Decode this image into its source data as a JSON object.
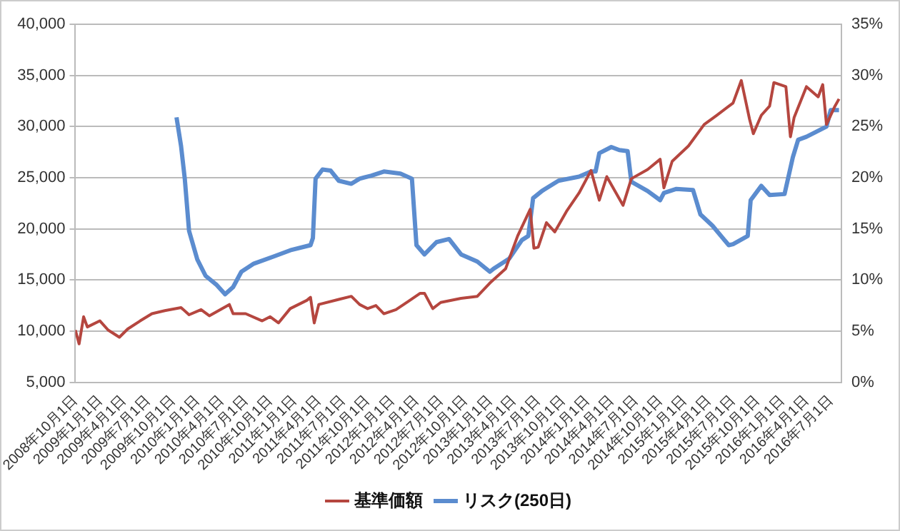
{
  "chart_data": {
    "type": "line",
    "legend": "bottom",
    "grid": "y",
    "marker": "none",
    "line_style": "solid",
    "xlim": [
      "2008-10-01",
      "2016-08-10"
    ],
    "xticks": [
      {
        "value": "2008-10-01",
        "label": "2008年10月1日"
      },
      {
        "value": "2009-01-01",
        "label": "2009年1月1日"
      },
      {
        "value": "2009-04-01",
        "label": "2009年4月1日"
      },
      {
        "value": "2009-07-01",
        "label": "2009年7月1日"
      },
      {
        "value": "2009-10-01",
        "label": "2009年10月1日"
      },
      {
        "value": "2010-01-01",
        "label": "2010年1月1日"
      },
      {
        "value": "2010-04-01",
        "label": "2010年4月1日"
      },
      {
        "value": "2010-07-01",
        "label": "2010年7月1日"
      },
      {
        "value": "2010-10-01",
        "label": "2010年10月1日"
      },
      {
        "value": "2011-01-01",
        "label": "2011年1月1日"
      },
      {
        "value": "2011-04-01",
        "label": "2011年4月1日"
      },
      {
        "value": "2011-07-01",
        "label": "2011年7月1日"
      },
      {
        "value": "2011-10-01",
        "label": "2011年10月1日"
      },
      {
        "value": "2012-01-01",
        "label": "2012年1月1日"
      },
      {
        "value": "2012-04-01",
        "label": "2012年4月1日"
      },
      {
        "value": "2012-07-01",
        "label": "2012年7月1日"
      },
      {
        "value": "2012-10-01",
        "label": "2012年10月1日"
      },
      {
        "value": "2013-01-01",
        "label": "2013年1月1日"
      },
      {
        "value": "2013-04-01",
        "label": "2013年4月1日"
      },
      {
        "value": "2013-07-01",
        "label": "2013年7月1日"
      },
      {
        "value": "2013-10-01",
        "label": "2013年10月1日"
      },
      {
        "value": "2014-01-01",
        "label": "2014年1月1日"
      },
      {
        "value": "2014-04-01",
        "label": "2014年4月1日"
      },
      {
        "value": "2014-07-01",
        "label": "2014年7月1日"
      },
      {
        "value": "2014-10-01",
        "label": "2014年10月1日"
      },
      {
        "value": "2015-01-01",
        "label": "2015年1月1日"
      },
      {
        "value": "2015-04-01",
        "label": "2015年4月1日"
      },
      {
        "value": "2015-07-01",
        "label": "2015年7月1日"
      },
      {
        "value": "2015-10-01",
        "label": "2015年10月1日"
      },
      {
        "value": "2016-01-01",
        "label": "2016年1月1日"
      },
      {
        "value": "2016-04-01",
        "label": "2016年4月1日"
      },
      {
        "value": "2016-07-01",
        "label": "2016年7月1日"
      }
    ],
    "ylim": [
      5000,
      40000
    ],
    "yticks": [
      {
        "value": 5000,
        "label": "5,000"
      },
      {
        "value": 10000,
        "label": "10,000"
      },
      {
        "value": 15000,
        "label": "15,000"
      },
      {
        "value": 20000,
        "label": "20,000"
      },
      {
        "value": 25000,
        "label": "25,000"
      },
      {
        "value": 30000,
        "label": "30,000"
      },
      {
        "value": 35000,
        "label": "35,000"
      },
      {
        "value": 40000,
        "label": "40,000"
      }
    ],
    "y2lim": [
      0,
      35
    ],
    "y2ticks": [
      {
        "value": 0,
        "label": "0%"
      },
      {
        "value": 5,
        "label": "5%"
      },
      {
        "value": 10,
        "label": "10%"
      },
      {
        "value": 15,
        "label": "15%"
      },
      {
        "value": 20,
        "label": "20%"
      },
      {
        "value": 25,
        "label": "25%"
      },
      {
        "value": 30,
        "label": "30%"
      },
      {
        "value": 35,
        "label": "35%"
      }
    ],
    "series": [
      {
        "name": "基準価額",
        "color": "#b5463f",
        "axis": "y",
        "x": [
          "2008-10-01",
          "2008-10-15",
          "2008-11-01",
          "2008-11-15",
          "2009-01-01",
          "2009-02-01",
          "2009-03-15",
          "2009-04-15",
          "2009-06-01",
          "2009-07-15",
          "2009-09-01",
          "2009-11-01",
          "2009-12-01",
          "2010-01-15",
          "2010-02-15",
          "2010-05-01",
          "2010-05-15",
          "2010-07-01",
          "2010-09-01",
          "2010-10-01",
          "2010-11-01",
          "2010-12-15",
          "2011-02-15",
          "2011-03-01",
          "2011-03-15",
          "2011-04-01",
          "2011-06-15",
          "2011-08-01",
          "2011-09-01",
          "2011-10-01",
          "2011-11-01",
          "2011-12-01",
          "2012-01-15",
          "2012-03-01",
          "2012-04-15",
          "2012-05-01",
          "2012-06-01",
          "2012-07-01",
          "2012-09-15",
          "2012-11-15",
          "2013-01-01",
          "2013-03-01",
          "2013-04-15",
          "2013-06-01",
          "2013-06-15",
          "2013-07-01",
          "2013-08-01",
          "2013-09-01",
          "2013-10-15",
          "2013-12-01",
          "2014-01-15",
          "2014-02-15",
          "2014-03-15",
          "2014-05-15",
          "2014-06-15",
          "2014-08-15",
          "2014-10-01",
          "2014-10-15",
          "2014-11-15",
          "2015-01-15",
          "2015-03-15",
          "2015-05-01",
          "2015-07-01",
          "2015-08-01",
          "2015-09-01",
          "2015-09-15",
          "2015-10-15",
          "2015-11-15",
          "2015-12-01",
          "2016-01-15",
          "2016-02-01",
          "2016-02-15",
          "2016-04-01",
          "2016-05-15",
          "2016-06-01",
          "2016-06-15",
          "2016-07-15",
          "2016-08-01"
        ],
        "values": [
          10100,
          8750,
          11400,
          10400,
          11000,
          10100,
          9400,
          10200,
          11000,
          11700,
          12000,
          12300,
          11600,
          12100,
          11500,
          12600,
          11700,
          11700,
          11000,
          11400,
          10800,
          12200,
          13000,
          13300,
          10800,
          12600,
          13100,
          13400,
          12600,
          12200,
          12500,
          11700,
          12100,
          12900,
          13700,
          13700,
          12200,
          12800,
          13200,
          13400,
          14700,
          16100,
          19300,
          21900,
          18100,
          18200,
          20600,
          19700,
          21700,
          23500,
          25700,
          22800,
          25100,
          22300,
          24900,
          25800,
          26800,
          24000,
          26600,
          28100,
          30200,
          31100,
          32300,
          34500,
          30700,
          29300,
          31100,
          32000,
          34300,
          33900,
          29000,
          30900,
          33900,
          32900,
          34100,
          30200,
          31900,
          32700
        ]
      },
      {
        "name": "リスク(250日)",
        "color": "#5b8ccf",
        "axis": "y2",
        "x": [
          "2009-10-15",
          "2009-11-01",
          "2009-11-15",
          "2009-12-01",
          "2010-01-01",
          "2010-02-01",
          "2010-03-15",
          "2010-04-15",
          "2010-05-15",
          "2010-06-15",
          "2010-08-01",
          "2010-10-15",
          "2010-12-15",
          "2011-03-01",
          "2011-03-10",
          "2011-03-20",
          "2011-04-15",
          "2011-05-15",
          "2011-06-15",
          "2011-08-01",
          "2011-09-01",
          "2011-10-15",
          "2011-12-01",
          "2012-02-01",
          "2012-03-15",
          "2012-04-01",
          "2012-05-01",
          "2012-06-15",
          "2012-08-01",
          "2012-09-15",
          "2012-11-15",
          "2013-01-01",
          "2013-01-15",
          "2013-03-15",
          "2013-05-01",
          "2013-05-25",
          "2013-06-12",
          "2013-07-15",
          "2013-09-15",
          "2013-12-01",
          "2014-01-15",
          "2014-02-01",
          "2014-02-15",
          "2014-04-01",
          "2014-05-01",
          "2014-06-01",
          "2014-06-15",
          "2014-08-15",
          "2014-10-01",
          "2014-10-15",
          "2014-12-01",
          "2015-02-01",
          "2015-03-01",
          "2015-04-15",
          "2015-06-15",
          "2015-07-01",
          "2015-08-25",
          "2015-09-05",
          "2015-10-15",
          "2015-11-15",
          "2016-01-10",
          "2016-02-10",
          "2016-03-01",
          "2016-04-01",
          "2016-06-15",
          "2016-07-01",
          "2016-08-01"
        ],
        "values": [
          25.9,
          23.1,
          19.9,
          14.8,
          12.0,
          10.4,
          9.5,
          8.6,
          9.3,
          10.8,
          11.6,
          12.3,
          12.9,
          13.4,
          14.1,
          19.9,
          20.8,
          20.7,
          19.7,
          19.4,
          19.9,
          20.2,
          20.6,
          20.4,
          19.9,
          13.4,
          12.5,
          13.7,
          14.0,
          12.5,
          11.8,
          10.8,
          11.1,
          12.1,
          13.9,
          14.3,
          18.0,
          18.7,
          19.7,
          20.1,
          20.6,
          20.6,
          22.4,
          23.0,
          22.7,
          22.6,
          19.6,
          18.7,
          17.8,
          18.5,
          18.9,
          18.8,
          16.4,
          15.3,
          13.4,
          13.5,
          14.3,
          17.8,
          19.2,
          18.3,
          18.4,
          22.0,
          23.7,
          24.0,
          25.0,
          26.6,
          26.6
        ]
      }
    ]
  }
}
